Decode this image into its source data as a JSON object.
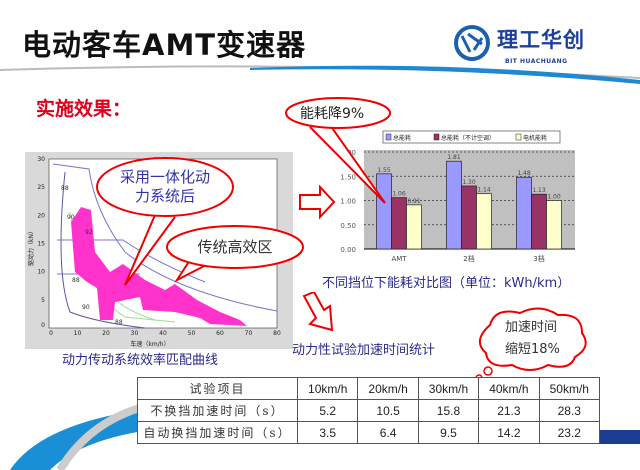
{
  "header": {
    "title": "电动客车AMT变速器",
    "logo_cn": "理工华创",
    "logo_en": "BIT HUACHUANG"
  },
  "section_title": "实施效果：",
  "efficiency_map": {
    "caption": "动力传动系统效率匹配曲线",
    "xlabel": "车速（km/h）",
    "ylabel": "驱动力（kN）",
    "xticks": [
      "0",
      "10",
      "20",
      "30",
      "40",
      "50",
      "60",
      "70",
      "80"
    ],
    "yticks": [
      "0",
      "5",
      "10",
      "15",
      "20",
      "25",
      "30"
    ],
    "contour_labels": [
      "88",
      "90",
      "92",
      "88",
      "90",
      "88"
    ],
    "callout_new": "采用一体化动力系统后",
    "callout_old": "传统高效区"
  },
  "chart_data": {
    "type": "bar",
    "categories": [
      "AMT",
      "2档",
      "3档"
    ],
    "series": [
      {
        "name": "总能耗",
        "values": [
          1.55,
          1.81,
          1.48
        ],
        "color": "#9999ff"
      },
      {
        "name": "总能耗（不计空调）",
        "values": [
          1.06,
          1.3,
          1.13
        ],
        "color": "#993366"
      },
      {
        "name": "电机能耗",
        "values": [
          0.91,
          1.14,
          1.0
        ],
        "color": "#ffffcc"
      }
    ],
    "data_labels": [
      [
        "1.55",
        "1.81",
        "1.48"
      ],
      [
        "1.06",
        "1.30",
        "1.13"
      ],
      [
        "0.91",
        "1.14",
        "1.00"
      ]
    ],
    "yticks": [
      "0.00",
      "0.50",
      "1.00",
      "1.50",
      "2.00"
    ],
    "ylim": [
      0,
      2
    ],
    "grid": true,
    "legend": "top",
    "title": "不同挡位下能耗对比图（单位：kWh/km）",
    "callout": "能耗降9%"
  },
  "accel": {
    "caption": "动力性试验加速时间统计",
    "callout_line1": "加速时间",
    "callout_line2": "缩短18%",
    "table": {
      "headers": [
        "试验项目",
        "10km/h",
        "20km/h",
        "30km/h",
        "40km/h",
        "50km/h"
      ],
      "rows": [
        [
          "不换挡加速时间（s）",
          "5.2",
          "10.5",
          "15.8",
          "21.3",
          "28.3"
        ],
        [
          "自动换挡加速时间（s）",
          "3.5",
          "6.4",
          "9.5",
          "14.2",
          "23.2"
        ]
      ]
    }
  }
}
